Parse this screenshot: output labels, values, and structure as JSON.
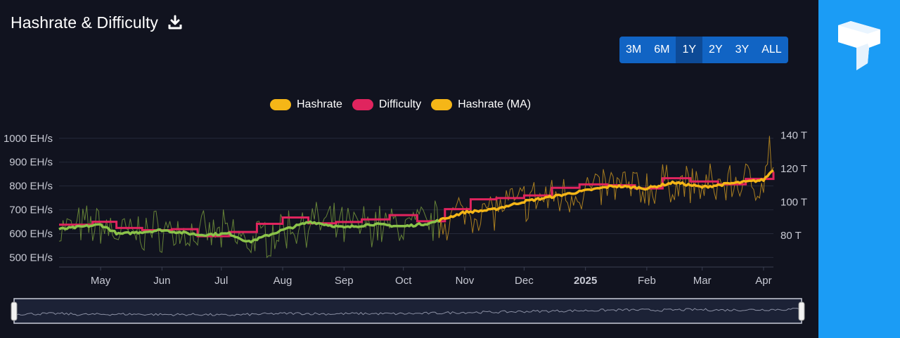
{
  "header": {
    "title": "Hashrate & Difficulty",
    "download_icon": "download-icon"
  },
  "range_selector": {
    "buttons": [
      "3M",
      "6M",
      "1Y",
      "2Y",
      "3Y",
      "ALL"
    ],
    "active": "1Y"
  },
  "sidebar": {
    "logo_icon": "brand-logo-icon",
    "color": "#1b9cf5"
  },
  "colors": {
    "background": "#11131f",
    "hashrate": "#f5b617",
    "difficulty": "#e0245e",
    "hashrate_ma": "#f5b617",
    "hashrate_ma_early": "#8bc34a"
  },
  "chart_data": {
    "type": "line",
    "legend": [
      "Hashrate",
      "Difficulty",
      "Hashrate (MA)"
    ],
    "legend_position": "top-center",
    "x_range": [
      "2024-04-10",
      "2025-04-06"
    ],
    "x_ticks": [
      "May",
      "Jun",
      "Jul",
      "Aug",
      "Sep",
      "Oct",
      "Nov",
      "Dec",
      "2025",
      "Feb",
      "Mar",
      "Apr"
    ],
    "y_left": {
      "unit": "EH/s",
      "ticks": [
        "500 EH/s",
        "600 EH/s",
        "700 EH/s",
        "800 EH/s",
        "900 EH/s",
        "1000 EH/s"
      ],
      "range": [
        460,
        1020
      ]
    },
    "y_right": {
      "unit": "T",
      "ticks": [
        "80 T",
        "100 T",
        "120 T",
        "140 T"
      ],
      "range": [
        61,
        141
      ]
    },
    "difficulty_series": {
      "name": "Difficulty",
      "dates": [
        "2024-04-10",
        "2024-04-27",
        "2024-05-09",
        "2024-05-22",
        "2024-06-06",
        "2024-06-19",
        "2024-07-05",
        "2024-07-19",
        "2024-08-01",
        "2024-08-14",
        "2024-08-28",
        "2024-09-10",
        "2024-09-24",
        "2024-10-08",
        "2024-10-22",
        "2024-11-04",
        "2024-11-17",
        "2024-12-01",
        "2024-12-15",
        "2024-12-29",
        "2025-01-12",
        "2025-01-26",
        "2025-02-09",
        "2025-02-23",
        "2025-03-09",
        "2025-03-23",
        "2025-04-06"
      ],
      "values": [
        86.4,
        88.1,
        84.4,
        83.1,
        83.7,
        79.5,
        82.0,
        86.9,
        90.7,
        87.2,
        88.0,
        89.5,
        92.1,
        88.4,
        95.7,
        101.6,
        102.3,
        103.9,
        108.5,
        110.5,
        110.0,
        108.1,
        114.2,
        112.3,
        110.6,
        113.8,
        118.0
      ]
    },
    "hashrate_ma_series": {
      "name": "Hashrate (MA)",
      "dates": [
        "2024-04-10",
        "2024-05-01",
        "2024-05-10",
        "2024-06-01",
        "2024-06-20",
        "2024-07-05",
        "2024-07-15",
        "2024-08-01",
        "2024-08-15",
        "2024-09-01",
        "2024-09-15",
        "2024-10-01",
        "2024-10-15",
        "2024-11-01",
        "2024-11-15",
        "2024-12-01",
        "2024-12-15",
        "2025-01-01",
        "2025-01-15",
        "2025-02-01",
        "2025-02-15",
        "2025-03-01",
        "2025-03-15",
        "2025-04-01",
        "2025-04-06"
      ],
      "values": [
        618,
        638,
        598,
        615,
        595,
        600,
        565,
        615,
        650,
        625,
        640,
        630,
        645,
        690,
        700,
        735,
        755,
        780,
        800,
        790,
        815,
        795,
        810,
        825,
        870
      ]
    },
    "hashrate_daily": {
      "name": "Hashrate",
      "min": 470,
      "max": 1010,
      "note_peak": "2025-04-04"
    }
  }
}
